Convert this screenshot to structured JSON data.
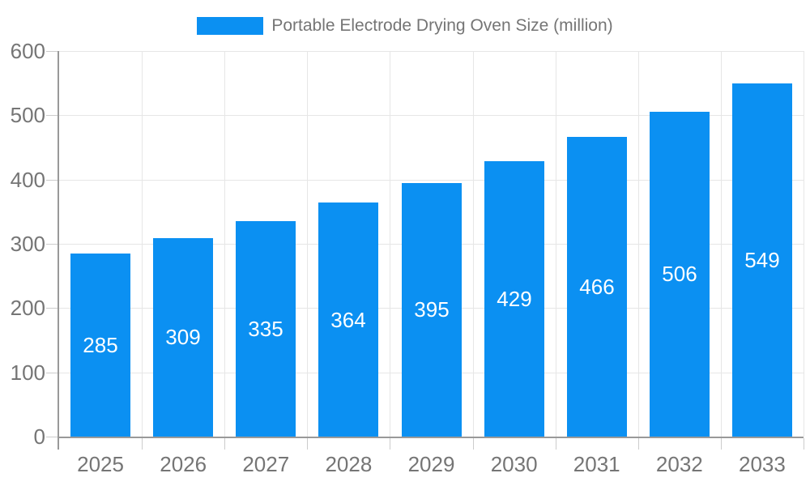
{
  "legend": {
    "swatch_color": "#0b90f2",
    "label": "Portable Electrode Drying Oven Size (million)"
  },
  "chart_data": {
    "type": "bar",
    "title": "Portable Electrode Drying Oven Size (million)",
    "categories": [
      "2025",
      "2026",
      "2027",
      "2028",
      "2029",
      "2030",
      "2031",
      "2032",
      "2033"
    ],
    "values": [
      285,
      309,
      335,
      364,
      395,
      429,
      466,
      506,
      549
    ],
    "value_labels": [
      "285",
      "309",
      "335",
      "364",
      "395",
      "429",
      "466",
      "506",
      "549"
    ],
    "xlabel": "",
    "ylabel": "",
    "ylim": [
      0,
      600
    ],
    "yticks": [
      0,
      100,
      200,
      300,
      400,
      500,
      600
    ],
    "grid": true,
    "legend_position": "top",
    "bar_color": "#0b90f2",
    "value_label_color": "#ffffff",
    "axis_label_color": "#757575",
    "axis_line_color": "#999999",
    "gridline_color": "#e6e6e6",
    "tick_color": "#cccccc"
  }
}
